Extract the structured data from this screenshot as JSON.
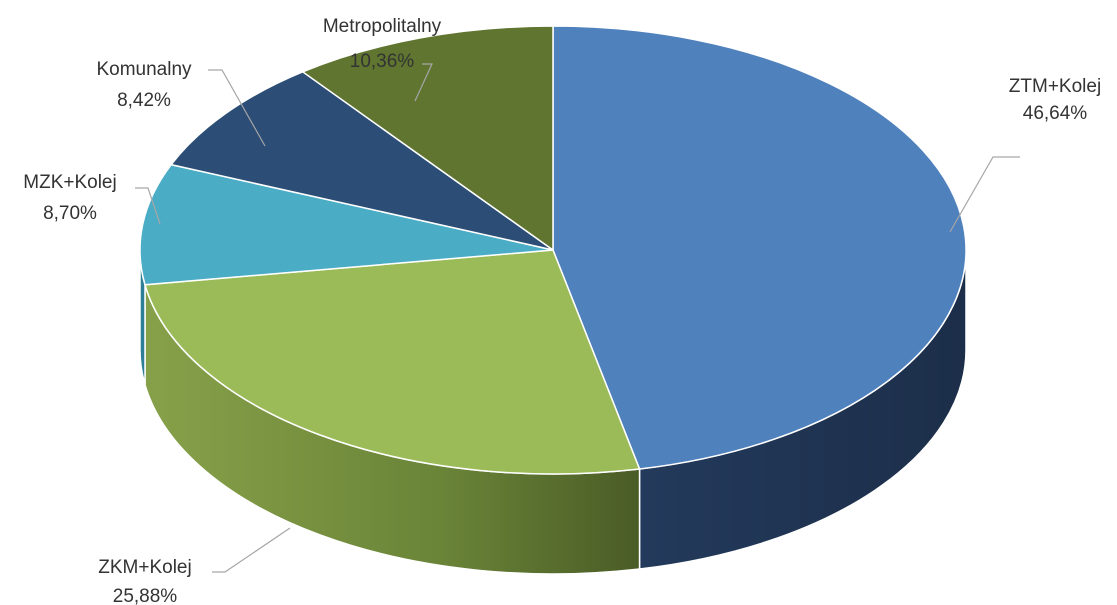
{
  "chart_data": {
    "type": "pie",
    "style": "3d-exploded-none",
    "title": "",
    "slices": [
      {
        "label": "ZTM+Kolej",
        "value": 46.64,
        "value_label": "46,64%",
        "color": "#4F81BD",
        "side_color": "#1F3251"
      },
      {
        "label": "ZKM+Kolej",
        "value": 25.88,
        "value_label": "25,88%",
        "color": "#9BBB59",
        "side_color": "#6E8A3C"
      },
      {
        "label": "MZK+Kolej",
        "value": 8.7,
        "value_label": "8,70%",
        "color": "#4BACC6",
        "side_color": "#2E7F96"
      },
      {
        "label": "Komunalny",
        "value": 8.42,
        "value_label": "8,42%",
        "color": "#2C4D75",
        "side_color": "#1B3049"
      },
      {
        "label": "Metropolitalny",
        "value": 10.36,
        "value_label": "10,36%",
        "color": "#5F7530",
        "side_color": "#3E4D1F"
      }
    ]
  }
}
